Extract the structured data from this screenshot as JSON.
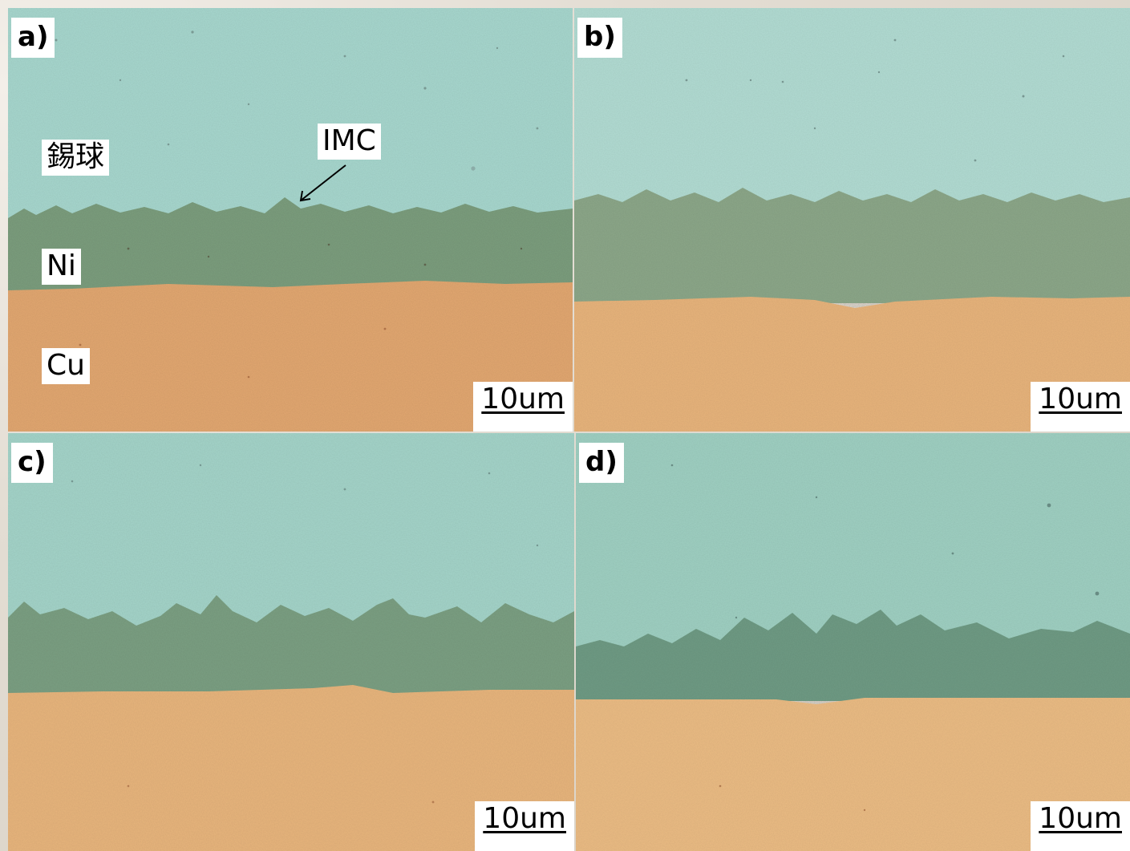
{
  "panels": [
    {
      "id": "a",
      "label": "a)",
      "scale_bar": "10um",
      "layers": [
        {
          "name": "錫球",
          "color": "#a8d8cf"
        },
        {
          "name": "Ni",
          "color": "#7c9e7e"
        },
        {
          "name": "Cu",
          "color": "#e3a871"
        }
      ],
      "annotation": "IMC"
    },
    {
      "id": "b",
      "label": "b)",
      "scale_bar": "10um",
      "layers": [
        {
          "color": "#b2dcd3"
        },
        {
          "color": "#8ca789"
        },
        {
          "color": "#e8b47c"
        }
      ]
    },
    {
      "id": "c",
      "label": "c)",
      "scale_bar": "10um",
      "layers": [
        {
          "color": "#a4d4c9"
        },
        {
          "color": "#7b9f82"
        },
        {
          "color": "#e8b57d"
        }
      ]
    },
    {
      "id": "d",
      "label": "d)",
      "scale_bar": "10um",
      "layers": [
        {
          "color": "#9fd0c2"
        },
        {
          "color": "#6f9b84"
        },
        {
          "color": "#ebbc84"
        }
      ]
    }
  ]
}
